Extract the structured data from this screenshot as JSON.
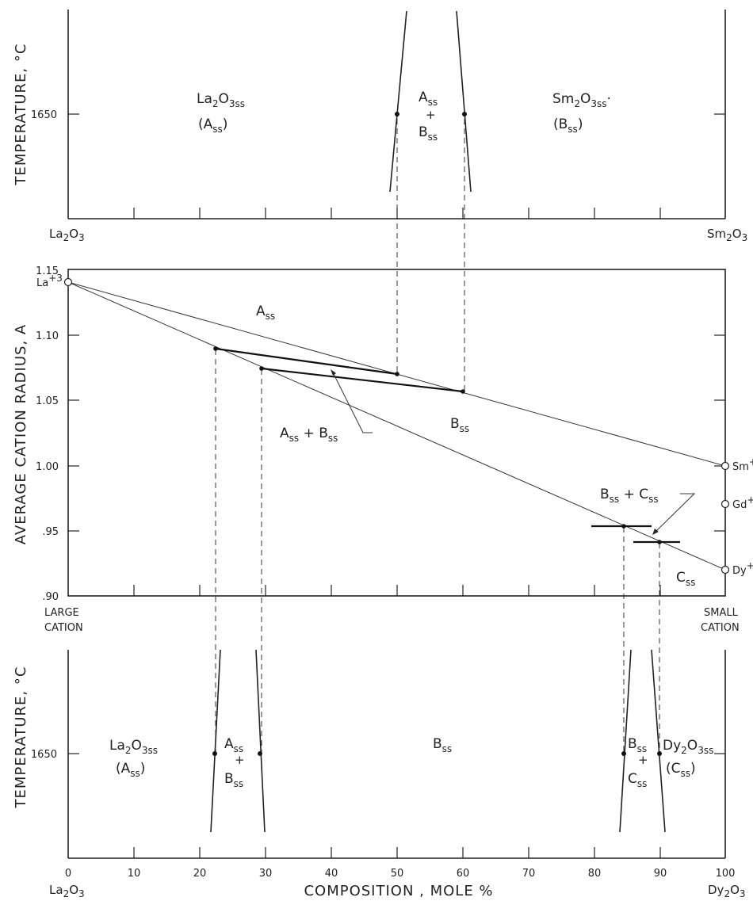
{
  "top_panel": {
    "ylabel": "TEMPERATURE, °C",
    "ytick": "1650",
    "left_end": {
      "main": "La",
      "s1": "2",
      "m2": "O",
      "s2": "3"
    },
    "right_end": {
      "main": "Sm",
      "s1": "2",
      "m2": "O",
      "s2": "3"
    },
    "region_left": {
      "f1": "La",
      "f2": "2",
      "f3": "O",
      "f4": "3ss",
      "p1": "(A",
      "p2": "ss",
      "p3": ")"
    },
    "region_mid": {
      "a": "A",
      "as": "ss",
      "plus": "+",
      "b": "B",
      "bs": "ss"
    },
    "region_right": {
      "f1": "Sm",
      "f2": "2",
      "f3": "O",
      "f4": "3ss",
      "mark": "·",
      "p1": "(B",
      "p2": "ss",
      "p3": ")"
    }
  },
  "middle_panel": {
    "ylabel": "AVERAGE CATION RADIUS, A",
    "yticks": [
      "1.15",
      "1.10",
      "1.05",
      "1.00",
      ".95",
      ".90"
    ],
    "ion_la": {
      "base": "La",
      "sup": "+3"
    },
    "ion_sm": "Sm",
    "ion_gd": "Gd",
    "ion_dy": "Dy",
    "ion_sup": "+",
    "label_a": {
      "m": "A",
      "s": "ss"
    },
    "label_b": {
      "m": "B",
      "s": "ss"
    },
    "label_c": {
      "m": "C",
      "s": "ss"
    },
    "label_ab": {
      "m1": "A",
      "s1": "ss",
      "plus": " + ",
      "m2": "B",
      "s2": "ss"
    },
    "label_bc": {
      "m1": "B",
      "s1": "ss",
      "plus": " + ",
      "m2": "C",
      "s2": "ss"
    },
    "large_1": "LARGE",
    "large_2": "CATION",
    "small_1": "SMALL",
    "small_2": "CATION"
  },
  "bottom_panel": {
    "ylabel": "TEMPERATURE, °C",
    "ytick": "1650",
    "xticks": [
      "0",
      "10",
      "20",
      "30",
      "40",
      "50",
      "60",
      "70",
      "80",
      "90",
      "100"
    ],
    "xlabel": "COMPOSITION , MOLE %",
    "left_end": {
      "main": "La",
      "s1": "2",
      "m2": "O",
      "s2": "3"
    },
    "right_end": {
      "main": "Dy",
      "s1": "2",
      "m2": "O",
      "s2": "3"
    },
    "region_la": {
      "f1": "La",
      "f2": "2",
      "f3": "O",
      "f4": "3ss",
      "p1": "(A",
      "p2": "ss",
      "p3": ")"
    },
    "region_ab": {
      "a": "A",
      "as": "ss",
      "plus": "+",
      "b": "B",
      "bs": "ss"
    },
    "region_b": {
      "m": "B",
      "s": "ss"
    },
    "region_bc": {
      "a": "B",
      "as": "ss",
      "plus": "+",
      "b": "C",
      "bs": "ss"
    },
    "region_dy": {
      "f1": "Dy",
      "f2": "2",
      "f3": "O",
      "f4": "3ss",
      "p1": "(C",
      "p2": "ss",
      "p3": ")"
    }
  }
}
